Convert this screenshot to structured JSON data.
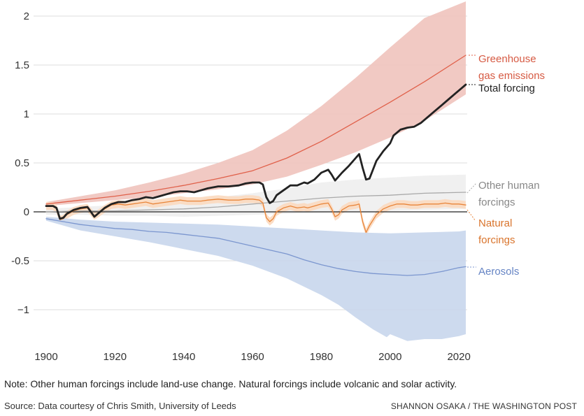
{
  "chart_data": {
    "type": "line",
    "title": "",
    "xlabel": "",
    "ylabel": "",
    "xlim": [
      1900,
      2022
    ],
    "ylim": [
      -1.35,
      2.1
    ],
    "x_ticks": [
      1900,
      1920,
      1940,
      1960,
      1980,
      2000,
      2020
    ],
    "y_ticks": [
      {
        "value": 2,
        "label": "2"
      },
      {
        "value": 1.5,
        "label": "1.5"
      },
      {
        "value": 1,
        "label": "1"
      },
      {
        "value": 0.5,
        "label": "0.5"
      },
      {
        "value": 0,
        "label": "0"
      },
      {
        "value": -0.5,
        "label": "-0.5"
      },
      {
        "value": -1,
        "label": "−1"
      }
    ],
    "series": [
      {
        "name": "Greenhouse gas emissions",
        "label_lines": [
          "Greenhouse",
          "gas emissions"
        ],
        "color": "#e0604a",
        "band_color": "#f0c3bd",
        "points": [
          [
            1900,
            0.08
          ],
          [
            1910,
            0.12
          ],
          [
            1920,
            0.16
          ],
          [
            1930,
            0.21
          ],
          [
            1940,
            0.27
          ],
          [
            1950,
            0.34
          ],
          [
            1960,
            0.42
          ],
          [
            1970,
            0.55
          ],
          [
            1980,
            0.72
          ],
          [
            1990,
            0.92
          ],
          [
            2000,
            1.12
          ],
          [
            2010,
            1.33
          ],
          [
            2022,
            1.6
          ]
        ],
        "band_upper": [
          [
            1900,
            0.1
          ],
          [
            1910,
            0.16
          ],
          [
            1920,
            0.22
          ],
          [
            1930,
            0.3
          ],
          [
            1940,
            0.39
          ],
          [
            1950,
            0.5
          ],
          [
            1960,
            0.63
          ],
          [
            1970,
            0.83
          ],
          [
            1980,
            1.08
          ],
          [
            1990,
            1.37
          ],
          [
            2000,
            1.68
          ],
          [
            2010,
            1.98
          ],
          [
            2022,
            2.15
          ]
        ],
        "band_lower": [
          [
            1900,
            0.06
          ],
          [
            1910,
            0.09
          ],
          [
            1920,
            0.12
          ],
          [
            1930,
            0.15
          ],
          [
            1940,
            0.19
          ],
          [
            1950,
            0.23
          ],
          [
            1960,
            0.28
          ],
          [
            1970,
            0.36
          ],
          [
            1980,
            0.48
          ],
          [
            1990,
            0.61
          ],
          [
            2000,
            0.76
          ],
          [
            2010,
            0.93
          ],
          [
            2022,
            1.2
          ]
        ]
      },
      {
        "name": "Total forcing",
        "label_lines": [
          "Total forcing"
        ],
        "color": "#222222",
        "points": [
          [
            1900,
            0.06
          ],
          [
            1902,
            0.06
          ],
          [
            1903,
            0.04
          ],
          [
            1904,
            -0.07
          ],
          [
            1905,
            -0.06
          ],
          [
            1906,
            -0.02
          ],
          [
            1908,
            0.02
          ],
          [
            1910,
            0.04
          ],
          [
            1912,
            0.05
          ],
          [
            1913,
            0.0
          ],
          [
            1914,
            -0.05
          ],
          [
            1915,
            -0.02
          ],
          [
            1917,
            0.04
          ],
          [
            1919,
            0.08
          ],
          [
            1921,
            0.1
          ],
          [
            1923,
            0.1
          ],
          [
            1925,
            0.12
          ],
          [
            1927,
            0.13
          ],
          [
            1929,
            0.15
          ],
          [
            1931,
            0.14
          ],
          [
            1933,
            0.16
          ],
          [
            1935,
            0.18
          ],
          [
            1937,
            0.2
          ],
          [
            1939,
            0.21
          ],
          [
            1941,
            0.21
          ],
          [
            1943,
            0.2
          ],
          [
            1945,
            0.22
          ],
          [
            1947,
            0.24
          ],
          [
            1950,
            0.26
          ],
          [
            1953,
            0.26
          ],
          [
            1956,
            0.27
          ],
          [
            1958,
            0.29
          ],
          [
            1960,
            0.3
          ],
          [
            1962,
            0.3
          ],
          [
            1963,
            0.28
          ],
          [
            1964,
            0.15
          ],
          [
            1965,
            0.09
          ],
          [
            1966,
            0.11
          ],
          [
            1967,
            0.17
          ],
          [
            1969,
            0.22
          ],
          [
            1971,
            0.27
          ],
          [
            1973,
            0.27
          ],
          [
            1975,
            0.3
          ],
          [
            1976,
            0.29
          ],
          [
            1978,
            0.33
          ],
          [
            1980,
            0.4
          ],
          [
            1982,
            0.43
          ],
          [
            1983,
            0.38
          ],
          [
            1984,
            0.32
          ],
          [
            1986,
            0.4
          ],
          [
            1988,
            0.47
          ],
          [
            1990,
            0.55
          ],
          [
            1991,
            0.59
          ],
          [
            1992,
            0.45
          ],
          [
            1993,
            0.33
          ],
          [
            1994,
            0.34
          ],
          [
            1996,
            0.52
          ],
          [
            1998,
            0.62
          ],
          [
            2000,
            0.7
          ],
          [
            2001,
            0.78
          ],
          [
            2003,
            0.84
          ],
          [
            2005,
            0.86
          ],
          [
            2007,
            0.87
          ],
          [
            2009,
            0.91
          ],
          [
            2011,
            0.97
          ],
          [
            2013,
            1.03
          ],
          [
            2015,
            1.09
          ],
          [
            2017,
            1.15
          ],
          [
            2019,
            1.21
          ],
          [
            2021,
            1.27
          ],
          [
            2022,
            1.3
          ]
        ]
      },
      {
        "name": "Other human forcings",
        "label_lines": [
          "Other human",
          "forcings"
        ],
        "color": "#a9a9a9",
        "band_color": "#eeeeee",
        "points": [
          [
            1900,
            0.0
          ],
          [
            1910,
            0.01
          ],
          [
            1920,
            0.01
          ],
          [
            1930,
            0.02
          ],
          [
            1940,
            0.03
          ],
          [
            1950,
            0.05
          ],
          [
            1960,
            0.08
          ],
          [
            1970,
            0.11
          ],
          [
            1980,
            0.14
          ],
          [
            1990,
            0.16
          ],
          [
            2000,
            0.17
          ],
          [
            2010,
            0.19
          ],
          [
            2022,
            0.2
          ]
        ],
        "band_upper": [
          [
            1900,
            0.03
          ],
          [
            1910,
            0.05
          ],
          [
            1920,
            0.07
          ],
          [
            1930,
            0.09
          ],
          [
            1940,
            0.12
          ],
          [
            1950,
            0.15
          ],
          [
            1960,
            0.19
          ],
          [
            1970,
            0.24
          ],
          [
            1980,
            0.3
          ],
          [
            1990,
            0.33
          ],
          [
            2000,
            0.35
          ],
          [
            2010,
            0.37
          ],
          [
            2022,
            0.38
          ]
        ],
        "band_lower": [
          [
            1900,
            -0.03
          ],
          [
            1910,
            -0.03
          ],
          [
            1920,
            -0.04
          ],
          [
            1930,
            -0.04
          ],
          [
            1940,
            -0.05
          ],
          [
            1950,
            -0.04
          ],
          [
            1960,
            -0.03
          ],
          [
            1970,
            -0.02
          ],
          [
            1980,
            -0.01
          ],
          [
            1990,
            0.0
          ],
          [
            2000,
            0.01
          ],
          [
            2010,
            0.02
          ],
          [
            2022,
            0.03
          ]
        ]
      },
      {
        "name": "Natural forcings",
        "label_lines": [
          "Natural",
          "forcings"
        ],
        "color": "#e8853a",
        "band_color": "#fbd9bf",
        "points": [
          [
            1900,
            0.06
          ],
          [
            1902,
            0.06
          ],
          [
            1903,
            0.03
          ],
          [
            1904,
            -0.08
          ],
          [
            1905,
            -0.07
          ],
          [
            1906,
            -0.03
          ],
          [
            1908,
            0.01
          ],
          [
            1910,
            0.03
          ],
          [
            1912,
            0.04
          ],
          [
            1913,
            0.0
          ],
          [
            1914,
            -0.04
          ],
          [
            1915,
            -0.02
          ],
          [
            1917,
            0.03
          ],
          [
            1919,
            0.07
          ],
          [
            1921,
            0.08
          ],
          [
            1923,
            0.07
          ],
          [
            1925,
            0.08
          ],
          [
            1927,
            0.09
          ],
          [
            1929,
            0.1
          ],
          [
            1931,
            0.08
          ],
          [
            1933,
            0.09
          ],
          [
            1935,
            0.1
          ],
          [
            1937,
            0.11
          ],
          [
            1939,
            0.12
          ],
          [
            1941,
            0.11
          ],
          [
            1943,
            0.11
          ],
          [
            1945,
            0.11
          ],
          [
            1947,
            0.12
          ],
          [
            1950,
            0.13
          ],
          [
            1953,
            0.12
          ],
          [
            1956,
            0.12
          ],
          [
            1958,
            0.13
          ],
          [
            1960,
            0.13
          ],
          [
            1962,
            0.12
          ],
          [
            1963,
            0.09
          ],
          [
            1964,
            -0.06
          ],
          [
            1965,
            -0.1
          ],
          [
            1966,
            -0.07
          ],
          [
            1967,
            0.0
          ],
          [
            1969,
            0.04
          ],
          [
            1971,
            0.06
          ],
          [
            1973,
            0.04
          ],
          [
            1975,
            0.05
          ],
          [
            1976,
            0.04
          ],
          [
            1978,
            0.06
          ],
          [
            1980,
            0.08
          ],
          [
            1982,
            0.09
          ],
          [
            1983,
            0.03
          ],
          [
            1984,
            -0.05
          ],
          [
            1985,
            -0.03
          ],
          [
            1986,
            0.02
          ],
          [
            1988,
            0.06
          ],
          [
            1990,
            0.07
          ],
          [
            1991,
            0.08
          ],
          [
            1992,
            -0.1
          ],
          [
            1993,
            -0.21
          ],
          [
            1994,
            -0.14
          ],
          [
            1996,
            -0.03
          ],
          [
            1998,
            0.03
          ],
          [
            2000,
            0.06
          ],
          [
            2002,
            0.08
          ],
          [
            2004,
            0.08
          ],
          [
            2006,
            0.07
          ],
          [
            2008,
            0.07
          ],
          [
            2010,
            0.08
          ],
          [
            2012,
            0.08
          ],
          [
            2014,
            0.08
          ],
          [
            2016,
            0.09
          ],
          [
            2018,
            0.08
          ],
          [
            2020,
            0.08
          ],
          [
            2022,
            0.07
          ]
        ],
        "band_half_width": 0.04
      },
      {
        "name": "Aerosols",
        "label_lines": [
          "Aerosols"
        ],
        "color": "#7b96cf",
        "band_color": "#c8d6ec",
        "points": [
          [
            1900,
            -0.07
          ],
          [
            1905,
            -0.1
          ],
          [
            1910,
            -0.13
          ],
          [
            1915,
            -0.15
          ],
          [
            1920,
            -0.17
          ],
          [
            1925,
            -0.18
          ],
          [
            1930,
            -0.2
          ],
          [
            1935,
            -0.21
          ],
          [
            1940,
            -0.23
          ],
          [
            1945,
            -0.25
          ],
          [
            1950,
            -0.27
          ],
          [
            1955,
            -0.31
          ],
          [
            1960,
            -0.35
          ],
          [
            1965,
            -0.39
          ],
          [
            1970,
            -0.43
          ],
          [
            1975,
            -0.49
          ],
          [
            1980,
            -0.54
          ],
          [
            1985,
            -0.58
          ],
          [
            1990,
            -0.61
          ],
          [
            1995,
            -0.63
          ],
          [
            2000,
            -0.64
          ],
          [
            2005,
            -0.65
          ],
          [
            2010,
            -0.64
          ],
          [
            2015,
            -0.61
          ],
          [
            2020,
            -0.57
          ],
          [
            2022,
            -0.56
          ]
        ],
        "band_upper": [
          [
            1900,
            -0.05
          ],
          [
            1910,
            -0.08
          ],
          [
            1920,
            -0.1
          ],
          [
            1930,
            -0.11
          ],
          [
            1940,
            -0.12
          ],
          [
            1950,
            -0.13
          ],
          [
            1960,
            -0.15
          ],
          [
            1970,
            -0.17
          ],
          [
            1980,
            -0.19
          ],
          [
            1990,
            -0.21
          ],
          [
            2000,
            -0.22
          ],
          [
            2010,
            -0.21
          ],
          [
            2020,
            -0.2
          ],
          [
            2022,
            -0.19
          ]
        ],
        "band_lower": [
          [
            1900,
            -0.09
          ],
          [
            1905,
            -0.14
          ],
          [
            1910,
            -0.19
          ],
          [
            1920,
            -0.25
          ],
          [
            1930,
            -0.31
          ],
          [
            1940,
            -0.38
          ],
          [
            1950,
            -0.45
          ],
          [
            1960,
            -0.55
          ],
          [
            1970,
            -0.68
          ],
          [
            1980,
            -0.85
          ],
          [
            1985,
            -0.95
          ],
          [
            1990,
            -1.08
          ],
          [
            1995,
            -1.2
          ],
          [
            1999,
            -1.28
          ],
          [
            2000,
            -1.25
          ],
          [
            2005,
            -1.32
          ],
          [
            2010,
            -1.3
          ],
          [
            2015,
            -1.3
          ],
          [
            2020,
            -1.27
          ],
          [
            2022,
            -1.25
          ]
        ]
      }
    ]
  },
  "footer": {
    "note": "Note: Other human forcings include land-use change. Natural forcings include volcanic and solar activity.",
    "source": "Source: Data courtesy of Chris Smith, University of Leeds",
    "credit": "SHANNON OSAKA / THE WASHINGTON POST"
  }
}
